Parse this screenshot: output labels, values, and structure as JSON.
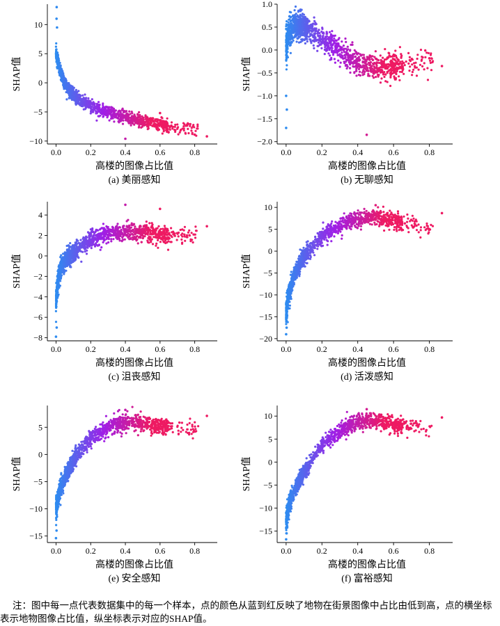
{
  "chart_data": [
    {
      "type": "scatter",
      "caption": "(a) 美丽感知",
      "xlabel": "高楼的图像占比值",
      "ylabel": "SHAP值",
      "xlim": [
        -0.05,
        0.93
      ],
      "ylim": [
        -10.5,
        13.5
      ],
      "xticks": [
        0.0,
        0.2,
        0.4,
        0.6,
        0.8
      ],
      "yticks": [
        -10,
        -5,
        0,
        5,
        10
      ],
      "shape": "decreasing",
      "curve": [
        [
          0.0,
          5.0
        ],
        [
          0.02,
          2.5
        ],
        [
          0.05,
          0.0
        ],
        [
          0.1,
          -2.2
        ],
        [
          0.2,
          -4.0
        ],
        [
          0.3,
          -5.0
        ],
        [
          0.4,
          -5.9
        ],
        [
          0.5,
          -6.6
        ],
        [
          0.6,
          -7.2
        ],
        [
          0.7,
          -7.7
        ],
        [
          0.8,
          -8.1
        ],
        [
          0.87,
          -8.4
        ]
      ],
      "spread": 1.0,
      "outliers": [
        [
          0.004,
          13.0
        ],
        [
          0.003,
          11.0
        ],
        [
          0.006,
          9.5
        ],
        [
          0.87,
          -9.2
        ],
        [
          0.8,
          -8.9
        ],
        [
          0.4,
          -9.6
        ],
        [
          0.6,
          -5.2
        ]
      ]
    },
    {
      "type": "scatter",
      "caption": "(b) 无聊感知",
      "xlabel": "高楼的图像占比值",
      "ylabel": "SHAP值",
      "xlim": [
        -0.05,
        0.93
      ],
      "ylim": [
        -2.05,
        1.0
      ],
      "xticks": [
        0.0,
        0.2,
        0.4,
        0.6,
        0.8
      ],
      "yticks": [
        -2.0,
        -1.5,
        -1.0,
        -0.5,
        0.0,
        0.5,
        1.0
      ],
      "shape": "hump-down",
      "curve": [
        [
          0.0,
          0.1
        ],
        [
          0.02,
          0.42
        ],
        [
          0.05,
          0.55
        ],
        [
          0.1,
          0.5
        ],
        [
          0.2,
          0.25
        ],
        [
          0.3,
          0.0
        ],
        [
          0.4,
          -0.3
        ],
        [
          0.5,
          -0.38
        ],
        [
          0.6,
          -0.35
        ],
        [
          0.7,
          -0.3
        ],
        [
          0.8,
          -0.25
        ],
        [
          0.87,
          -0.3
        ]
      ],
      "spread": 0.25,
      "outliers": [
        [
          0.0,
          -1.7
        ],
        [
          0.004,
          -1.3
        ],
        [
          0.0,
          -1.0
        ],
        [
          0.45,
          -1.85
        ],
        [
          0.87,
          -0.35
        ],
        [
          0.8,
          -0.18
        ],
        [
          0.08,
          0.88
        ]
      ]
    },
    {
      "type": "scatter",
      "caption": "(c) 沮丧感知",
      "xlabel": "高楼的图像占比值",
      "ylabel": "SHAP值",
      "xlim": [
        -0.05,
        0.93
      ],
      "ylim": [
        -8.3,
        5.3
      ],
      "xticks": [
        0.0,
        0.2,
        0.4,
        0.6,
        0.8
      ],
      "yticks": [
        -8,
        -6,
        -4,
        -2,
        0,
        2,
        4
      ],
      "shape": "rising",
      "curve": [
        [
          0.0,
          -4.5
        ],
        [
          0.01,
          -2.5
        ],
        [
          0.03,
          -1.0
        ],
        [
          0.06,
          -0.3
        ],
        [
          0.1,
          0.3
        ],
        [
          0.2,
          1.5
        ],
        [
          0.3,
          2.2
        ],
        [
          0.4,
          2.4
        ],
        [
          0.5,
          2.3
        ],
        [
          0.6,
          2.1
        ],
        [
          0.7,
          2.0
        ],
        [
          0.8,
          2.0
        ],
        [
          0.87,
          2.0
        ]
      ],
      "spread": 0.75,
      "outliers": [
        [
          0.0,
          -7.9
        ],
        [
          0.004,
          -7.0
        ],
        [
          0.87,
          2.9
        ],
        [
          0.4,
          5.0
        ],
        [
          0.6,
          4.6
        ]
      ]
    },
    {
      "type": "scatter",
      "caption": "(d) 活泼感知",
      "xlabel": "高楼的图像占比值",
      "ylabel": "SHAP值",
      "xlim": [
        -0.05,
        0.93
      ],
      "ylim": [
        -20.5,
        11.3
      ],
      "xticks": [
        0.0,
        0.2,
        0.4,
        0.6,
        0.8
      ],
      "yticks": [
        -20,
        -15,
        -10,
        -5,
        0,
        5,
        10
      ],
      "shape": "rising",
      "curve": [
        [
          0.0,
          -14.0
        ],
        [
          0.02,
          -9.0
        ],
        [
          0.05,
          -5.0
        ],
        [
          0.1,
          -1.0
        ],
        [
          0.2,
          3.5
        ],
        [
          0.3,
          6.0
        ],
        [
          0.4,
          7.5
        ],
        [
          0.5,
          7.7
        ],
        [
          0.6,
          7.0
        ],
        [
          0.7,
          6.0
        ],
        [
          0.8,
          5.5
        ],
        [
          0.87,
          6.5
        ]
      ],
      "spread": 1.7,
      "outliers": [
        [
          0.0,
          -19.0
        ],
        [
          0.003,
          -17.5
        ],
        [
          0.87,
          8.7
        ],
        [
          0.5,
          10.5
        ]
      ]
    },
    {
      "type": "scatter",
      "caption": "(e) 安全感知",
      "xlabel": "高楼的图像占比值",
      "ylabel": "SHAP值",
      "xlim": [
        -0.05,
        0.93
      ],
      "ylim": [
        -16.2,
        9.0
      ],
      "xticks": [
        0.0,
        0.2,
        0.4,
        0.6,
        0.8
      ],
      "yticks": [
        -15,
        -10,
        -5,
        0,
        5
      ],
      "shape": "rising",
      "curve": [
        [
          0.0,
          -10.0
        ],
        [
          0.02,
          -7.0
        ],
        [
          0.05,
          -4.5
        ],
        [
          0.1,
          -1.0
        ],
        [
          0.2,
          3.0
        ],
        [
          0.3,
          5.0
        ],
        [
          0.4,
          5.9
        ],
        [
          0.5,
          5.7
        ],
        [
          0.6,
          5.2
        ],
        [
          0.7,
          4.8
        ],
        [
          0.8,
          4.5
        ],
        [
          0.87,
          5.0
        ]
      ],
      "spread": 1.4,
      "outliers": [
        [
          0.0,
          -15.4
        ],
        [
          0.003,
          -14.0
        ],
        [
          0.87,
          7.1
        ],
        [
          0.4,
          8.2
        ]
      ]
    },
    {
      "type": "scatter",
      "caption": "(f) 富裕感知",
      "xlabel": "高楼的图像占比值",
      "ylabel": "SHAP值",
      "xlim": [
        -0.05,
        0.93
      ],
      "ylim": [
        -17.5,
        12.3
      ],
      "xticks": [
        0.0,
        0.2,
        0.4,
        0.6,
        0.8
      ],
      "yticks": [
        -15,
        -10,
        -5,
        0,
        5,
        10
      ],
      "shape": "rising",
      "curve": [
        [
          0.0,
          -13.0
        ],
        [
          0.02,
          -9.0
        ],
        [
          0.05,
          -6.0
        ],
        [
          0.1,
          -2.0
        ],
        [
          0.2,
          3.5
        ],
        [
          0.3,
          7.0
        ],
        [
          0.4,
          8.8
        ],
        [
          0.5,
          9.0
        ],
        [
          0.6,
          8.2
        ],
        [
          0.7,
          7.5
        ],
        [
          0.8,
          7.2
        ],
        [
          0.87,
          8.0
        ]
      ],
      "spread": 1.5,
      "outliers": [
        [
          0.0,
          -16.8
        ],
        [
          0.003,
          -15.5
        ],
        [
          0.87,
          9.7
        ],
        [
          0.45,
          11.5
        ]
      ]
    }
  ],
  "colors": {
    "low": "#2e8cf0",
    "mid": "#a01ee6",
    "high": "#ee1a62"
  },
  "note": {
    "line1": "注：图中每一点代表数据集中的每一个样本，点的颜色从蓝到红反映了地物在街景图像中占比由低到高，点的横坐标",
    "line2": "表示地物图像占比值，纵坐标表示对应的SHAP值。"
  }
}
